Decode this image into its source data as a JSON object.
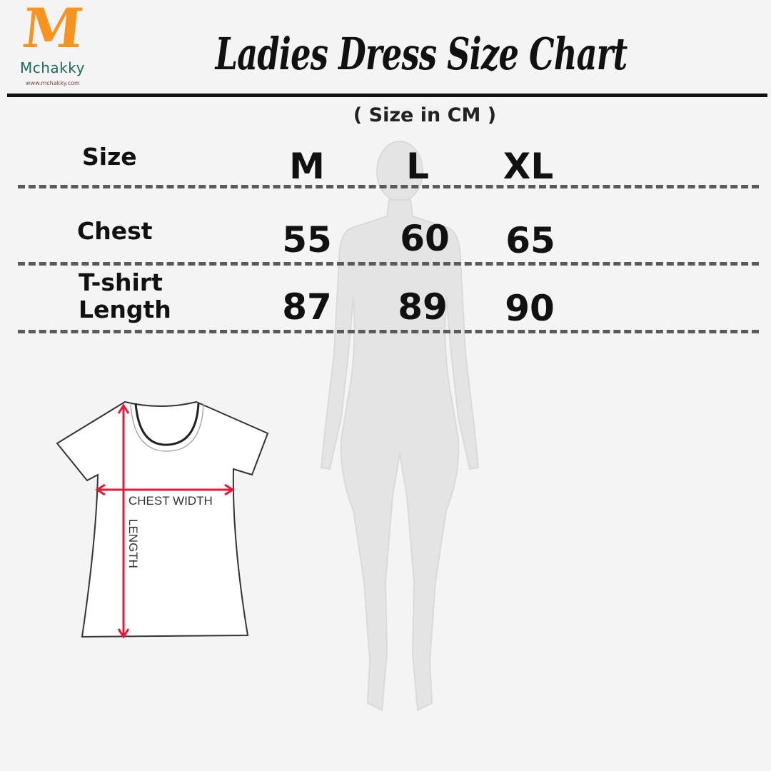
{
  "brand": {
    "logo_letter": "M",
    "name": "Mchakky",
    "url": "www.mchakky.com",
    "accent": "#f7931e",
    "name_color": "#1d6b60"
  },
  "title": "Ladies Dress Size Chart",
  "unit_note": "( Size in CM )",
  "table": {
    "header_label": "Size",
    "columns": [
      "M",
      "L",
      "XL"
    ],
    "rows": [
      {
        "label": "Chest",
        "values": [
          "55",
          "60",
          "65"
        ]
      },
      {
        "label_line1": "T-shirt",
        "label_line2": "Length",
        "values": [
          "87",
          "89",
          "90"
        ]
      }
    ]
  },
  "diagram": {
    "chest_label": "CHEST WIDTH",
    "length_label": "LENGTH",
    "arrow_color": "#e8173a"
  }
}
